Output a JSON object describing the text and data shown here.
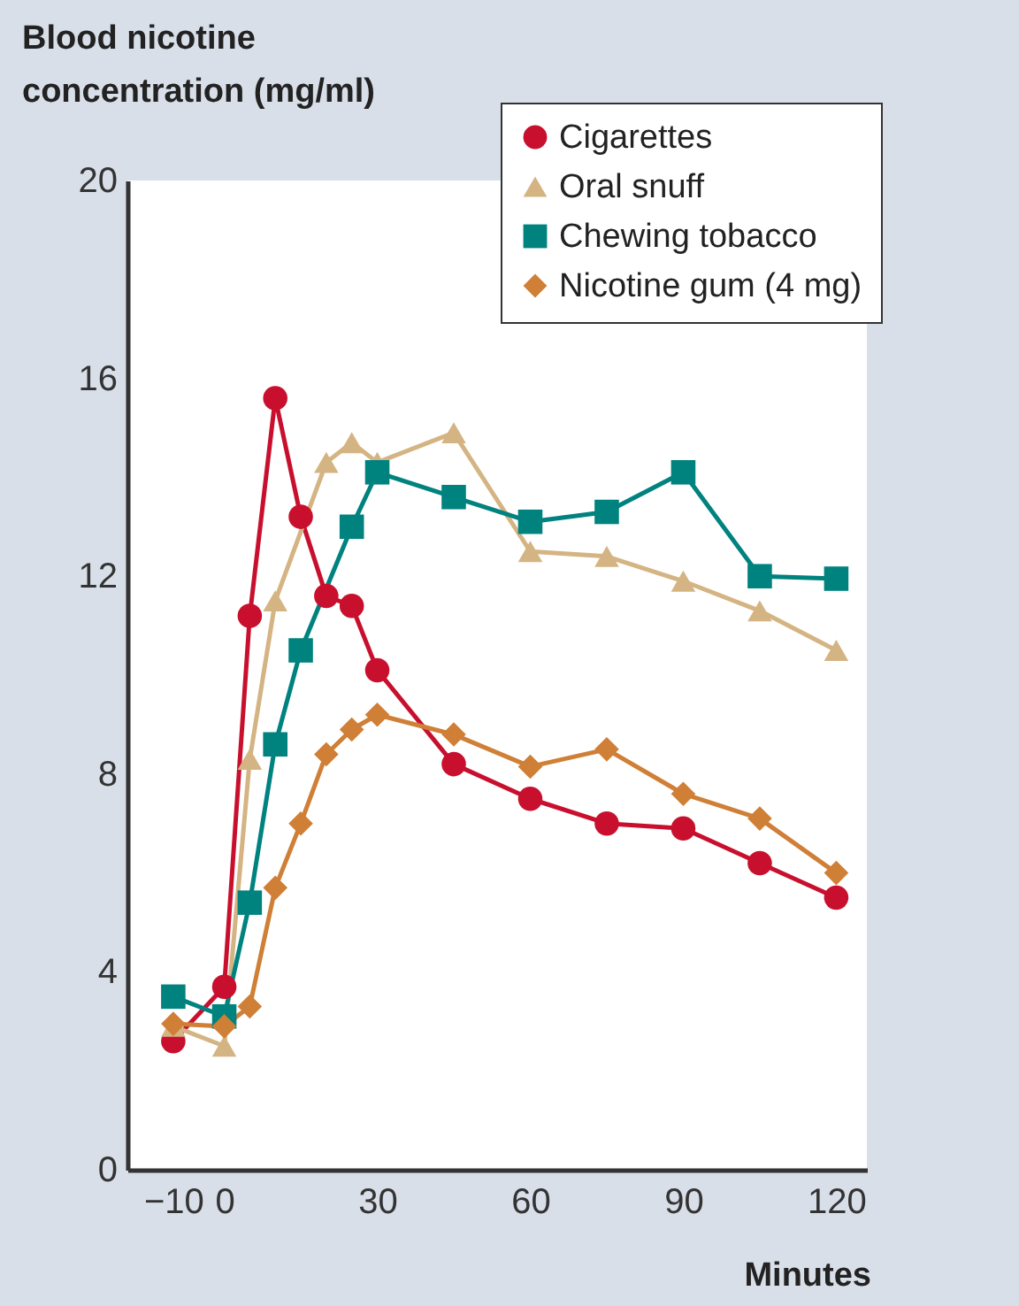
{
  "chart_data": {
    "type": "line",
    "ylabel": "Blood nicotine concentration (mg/ml)",
    "xlabel": "Minutes",
    "xlim": [
      -19,
      126
    ],
    "xticks": [
      -10,
      0,
      30,
      60,
      90,
      120
    ],
    "ylim": [
      0,
      20
    ],
    "yticks": [
      0,
      4,
      8,
      12,
      16,
      20
    ],
    "grid": false,
    "legend": "top right",
    "series": [
      {
        "name": "Cigarettes",
        "color": "#c8102e",
        "marker": "circle",
        "x": [
          -10,
          0,
          5,
          10,
          15,
          20,
          25,
          30,
          45,
          60,
          75,
          90,
          105,
          120
        ],
        "values": [
          2.6,
          3.7,
          11.2,
          15.6,
          13.2,
          11.6,
          11.4,
          10.1,
          8.2,
          7.5,
          7.0,
          6.9,
          6.2,
          5.5
        ]
      },
      {
        "name": "Oral snuff",
        "color": "#d4b483",
        "marker": "triangle",
        "x": [
          -10,
          0,
          5,
          10,
          20,
          25,
          30,
          45,
          60,
          75,
          90,
          105,
          120
        ],
        "values": [
          2.9,
          2.5,
          8.3,
          11.5,
          14.3,
          14.7,
          14.3,
          14.9,
          12.5,
          12.4,
          11.9,
          11.3,
          10.5
        ]
      },
      {
        "name": "Chewing tobacco",
        "color": "#00827f",
        "marker": "square",
        "x": [
          -10,
          0,
          5,
          10,
          15,
          25,
          30,
          45,
          60,
          75,
          90,
          105,
          120
        ],
        "values": [
          3.5,
          3.1,
          5.4,
          8.6,
          10.5,
          13.0,
          14.1,
          13.6,
          13.1,
          13.3,
          14.1,
          12.0,
          11.95
        ]
      },
      {
        "name": "Nicotine gum (4 mg)",
        "color": "#cf7f36",
        "marker": "diamond",
        "x": [
          -10,
          0,
          5,
          10,
          15,
          20,
          25,
          30,
          45,
          60,
          75,
          90,
          105,
          120
        ],
        "values": [
          2.95,
          2.9,
          3.3,
          5.7,
          7.0,
          8.4,
          8.9,
          9.2,
          8.8,
          8.15,
          8.5,
          7.6,
          7.1,
          6.0
        ]
      }
    ]
  }
}
